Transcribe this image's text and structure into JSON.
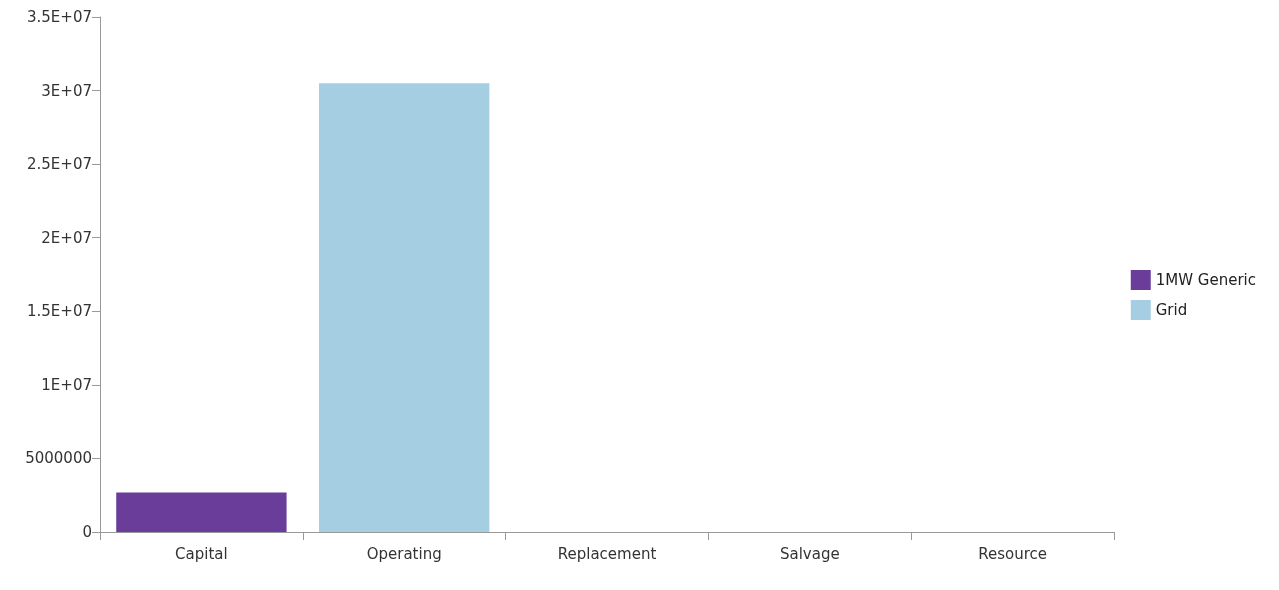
{
  "chart_data": {
    "type": "bar",
    "stacked": true,
    "categories": [
      "Capital",
      "Operating",
      "Replacement",
      "Salvage",
      "Resource"
    ],
    "series": [
      {
        "name": "1MW Generic",
        "color": "#6a3d9a",
        "values": [
          2680000,
          0,
          0,
          0,
          0
        ]
      },
      {
        "name": "Grid",
        "color": "#a6cee3",
        "values": [
          0,
          30500000,
          0,
          0,
          0
        ]
      }
    ],
    "ylim": [
      0,
      35000000
    ],
    "yticks": [
      {
        "value": 0,
        "label": "0"
      },
      {
        "value": 5000000,
        "label": "5000000"
      },
      {
        "value": 10000000,
        "label": "1E+07"
      },
      {
        "value": 15000000,
        "label": "1.5E+07"
      },
      {
        "value": 20000000,
        "label": "2E+07"
      },
      {
        "value": 25000000,
        "label": "2.5E+07"
      },
      {
        "value": 30000000,
        "label": "3E+07"
      },
      {
        "value": 35000000,
        "label": "3.5E+07"
      }
    ],
    "grid": false,
    "legend": "right"
  }
}
